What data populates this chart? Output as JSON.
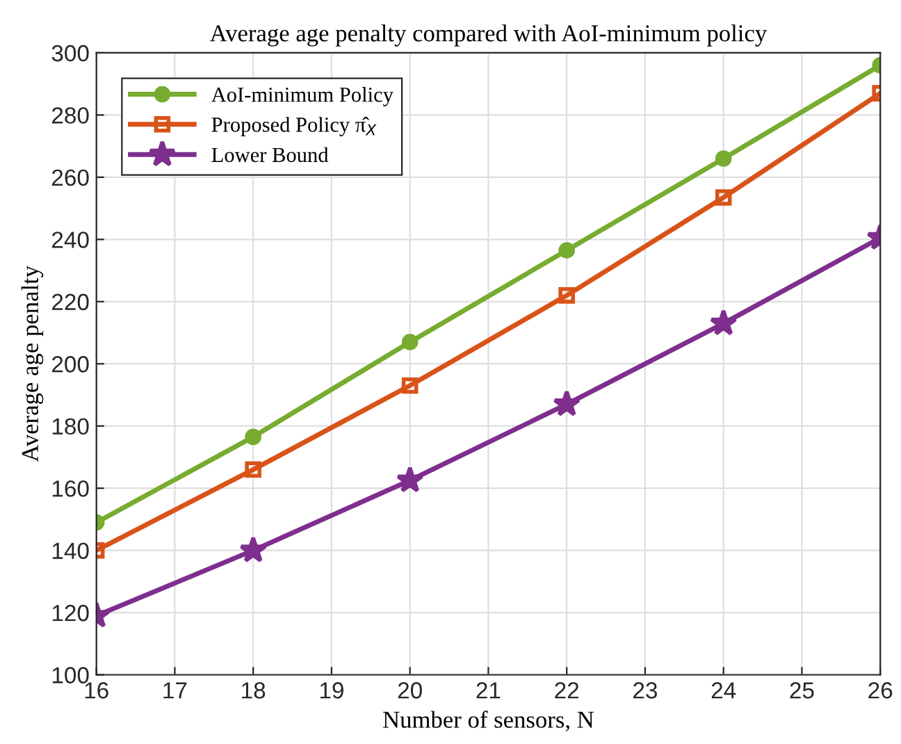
{
  "chart_data": {
    "type": "line",
    "title": "Average age penalty compared with AoI-minimum policy",
    "xlabel": "Number of sensors, N",
    "ylabel": "Average age penalty",
    "x": [
      16,
      18,
      20,
      22,
      24,
      26
    ],
    "series": [
      {
        "name": "AoI-minimum Policy",
        "color": "#77ac30",
        "marker": "circle",
        "values": [
          149,
          176.5,
          207,
          236.5,
          266,
          296
        ]
      },
      {
        "name": "Proposed Policy π̂$_{X}$",
        "color": "#d95319",
        "marker": "square",
        "values": [
          140,
          166,
          193,
          222,
          253.5,
          287
        ]
      },
      {
        "name": "Lower Bound",
        "color": "#7e2f8e",
        "marker": "star",
        "values": [
          119,
          140,
          162.5,
          187,
          213,
          240.5
        ]
      }
    ],
    "xlim": [
      16,
      26
    ],
    "xticks": [
      16,
      17,
      18,
      19,
      20,
      21,
      22,
      23,
      24,
      25,
      26
    ],
    "ylim": [
      100,
      300
    ],
    "yticks": [
      100,
      120,
      140,
      160,
      180,
      200,
      220,
      240,
      260,
      280,
      300
    ],
    "grid": true,
    "legend": "top left",
    "line_style": "solid"
  }
}
